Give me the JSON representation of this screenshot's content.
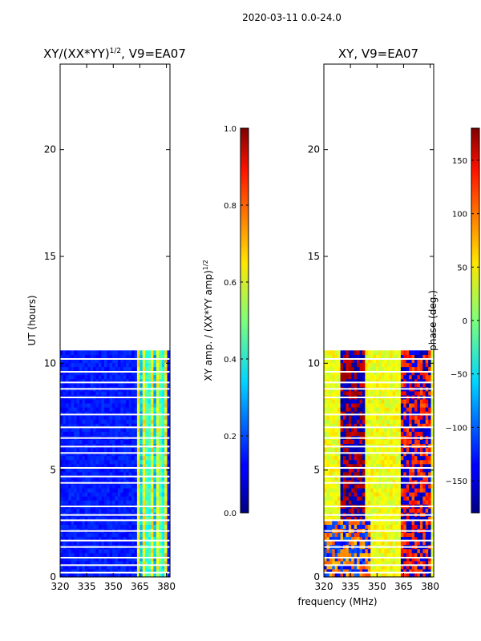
{
  "suptitle": "2020-03-11 0.0-24.0",
  "colors": {
    "background": "#ffffff",
    "axis": "#000000",
    "gap": "#ffffff"
  },
  "chart_data": [
    {
      "type": "heatmap",
      "title_main": "XY/(XX*YY)",
      "title_sup": "1/2",
      "title_rest": ", V9=EA07",
      "xlabel": "",
      "ylabel": "UT (hours)",
      "xlim": [
        320,
        382
      ],
      "ylim": [
        0,
        24
      ],
      "xticks": [
        "320",
        "335",
        "350",
        "365",
        "380"
      ],
      "xtick_values": [
        320,
        335,
        350,
        365,
        380
      ],
      "yticks": [
        "0",
        "5",
        "10",
        "15",
        "20"
      ],
      "ytick_values": [
        0,
        5,
        10,
        15,
        20
      ],
      "data_ut_range": [
        0,
        10.6
      ],
      "colorbar": {
        "label": "XY amp. / (XX*YY amp)",
        "label_sup": "1/2",
        "range": [
          0.0,
          1.0
        ],
        "ticks": [
          "0.0",
          "0.2",
          "0.4",
          "0.6",
          "0.8",
          "1.0"
        ],
        "tick_values": [
          0.0,
          0.2,
          0.4,
          0.6,
          0.8,
          1.0
        ]
      }
    },
    {
      "type": "heatmap",
      "title_main": "XY, V9=EA07",
      "xlabel": "frequency (MHz)",
      "ylabel": "",
      "xlim": [
        320,
        382
      ],
      "ylim": [
        0,
        24
      ],
      "xticks": [
        "320",
        "335",
        "350",
        "365",
        "380"
      ],
      "xtick_values": [
        320,
        335,
        350,
        365,
        380
      ],
      "yticks": [
        "0",
        "5",
        "10",
        "15",
        "20"
      ],
      "ytick_values": [
        0,
        5,
        10,
        15,
        20
      ],
      "data_ut_range": [
        0,
        10.6
      ],
      "colorbar": {
        "label": "phase (deg.)",
        "range": [
          -180,
          180
        ],
        "ticks": [
          "−150",
          "−100",
          "−50",
          "0",
          "50",
          "100",
          "150"
        ],
        "tick_values": [
          -150,
          -100,
          -50,
          0,
          50,
          100,
          150
        ]
      }
    }
  ]
}
